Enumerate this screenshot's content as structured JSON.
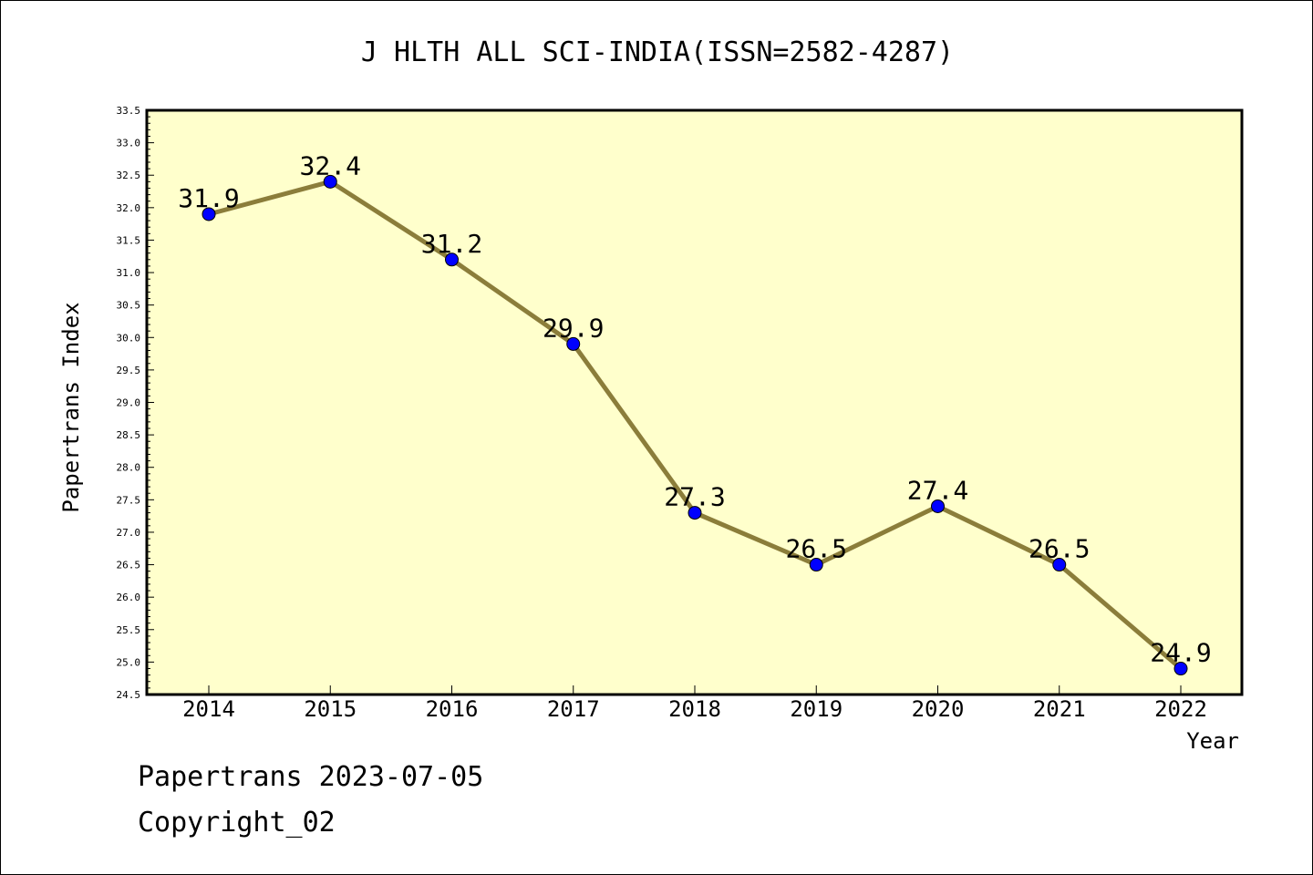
{
  "chart_data": {
    "type": "line",
    "title": "J HLTH ALL SCI-INDIA(ISSN=2582-4287)",
    "xlabel": "Year",
    "ylabel": "Papertrans Index",
    "categories": [
      "2014",
      "2015",
      "2016",
      "2017",
      "2018",
      "2019",
      "2020",
      "2021",
      "2022"
    ],
    "series": [
      {
        "values": [
          31.9,
          32.4,
          31.2,
          29.9,
          27.3,
          26.5,
          27.4,
          26.5,
          24.9
        ]
      }
    ],
    "data_labels": [
      "31.9",
      "32.4",
      "31.2",
      "29.9",
      "27.3",
      "26.5",
      "27.4",
      "26.5",
      "24.9"
    ],
    "ylim": [
      24.5,
      33.5
    ],
    "yticks": [
      "24.5",
      "25.0",
      "25.5",
      "26.0",
      "26.5",
      "27.0",
      "27.5",
      "28.0",
      "28.5",
      "29.0",
      "29.5",
      "30.0",
      "30.5",
      "31.0",
      "31.5",
      "32.0",
      "32.5",
      "33.0",
      "33.5"
    ],
    "grid": false,
    "legend": "none",
    "colors": {
      "plot_background": "#ffffcc",
      "line": "#8b7d3a",
      "marker": "#0000ff"
    }
  },
  "footer": {
    "date_text": "Papertrans 2023-07-05",
    "copyright_text": "Copyright_02"
  }
}
